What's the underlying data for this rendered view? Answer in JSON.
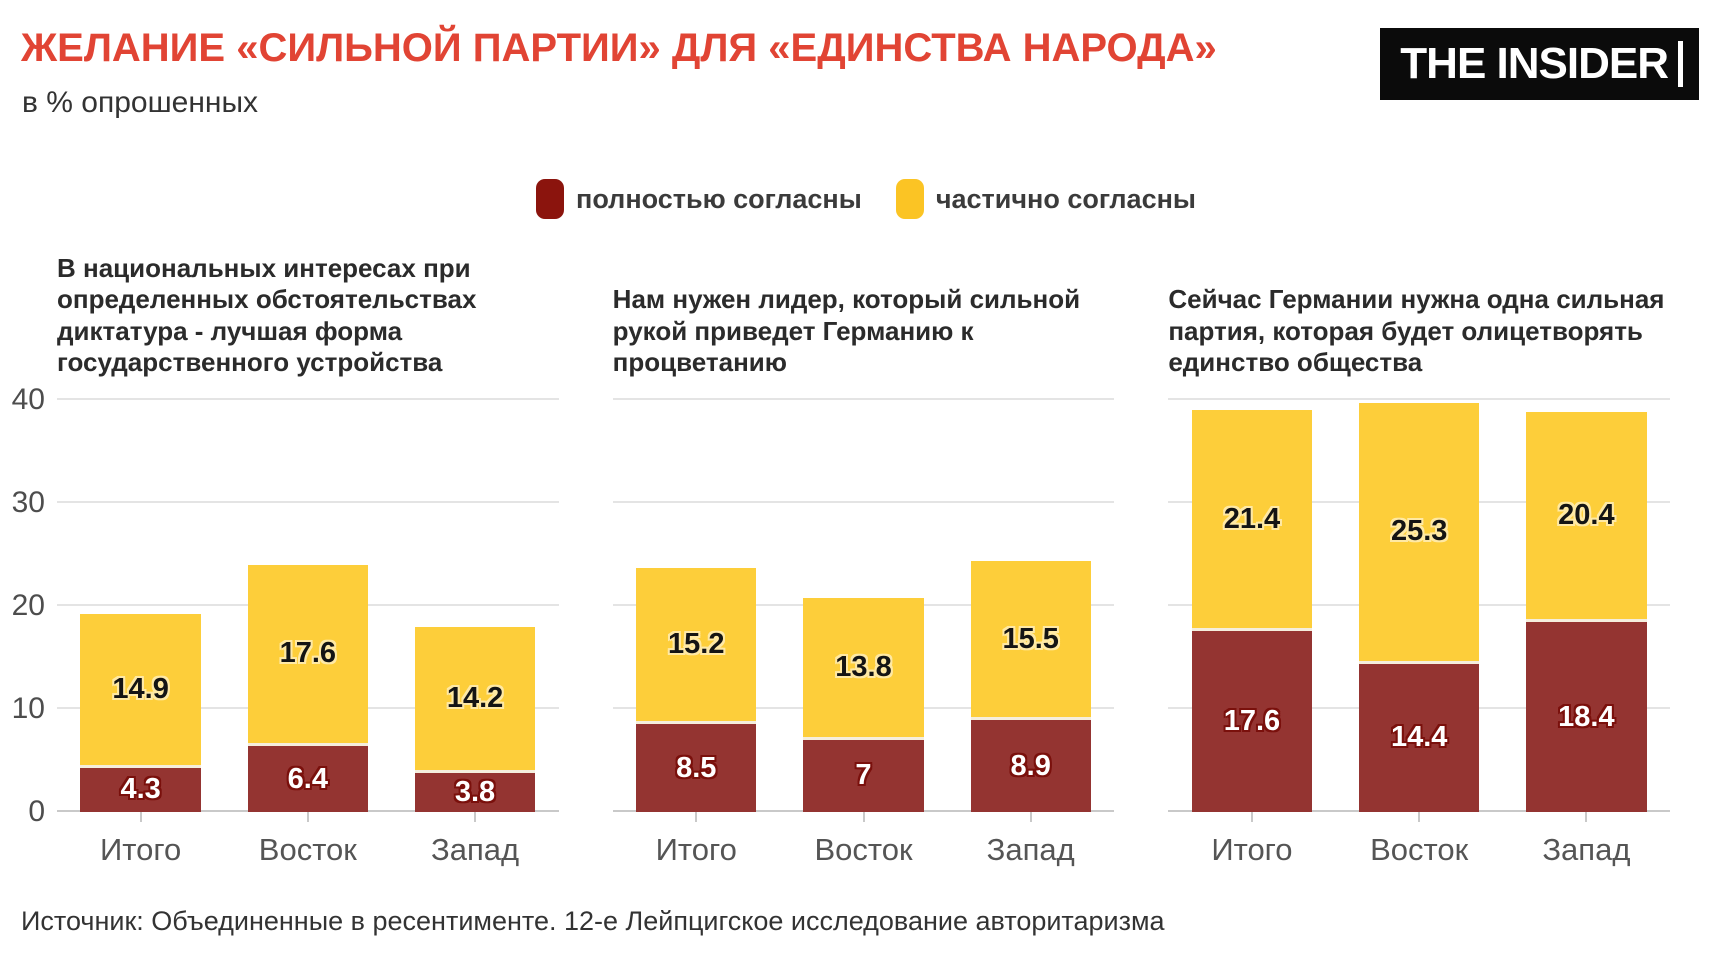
{
  "header": {
    "title": "ЖЕЛАНИЕ «СИЛЬНОЙ ПАРТИИ» ДЛЯ «ЕДИНСТВА НАРОДА»",
    "subtitle": "в % опрошенных",
    "logo_text": "THE INSIDER"
  },
  "legend": [
    {
      "label": "полностью согласны",
      "color": "#8b140d"
    },
    {
      "label": "частично согласны",
      "color": "#fbc424"
    }
  ],
  "colors": {
    "title_accent": "#e14434",
    "bar_full": "#943431",
    "bar_partial": "#fdce3a",
    "separator": "#f5eedd",
    "gridline": "#e4e4e4",
    "axis_text": "#4d4d4d"
  },
  "chart_data": [
    {
      "type": "bar",
      "stacked": true,
      "title": "В национальных интересах при определенных обстоятельствах диктатура - лучшая форма государственного устройства",
      "categories": [
        "Итого",
        "Восток",
        "Запад"
      ],
      "series": [
        {
          "name": "полностью согласны",
          "values": [
            4.3,
            6.4,
            3.8
          ]
        },
        {
          "name": "частично согласны",
          "values": [
            14.9,
            17.6,
            14.2
          ]
        }
      ],
      "ylim": [
        0,
        40
      ],
      "yticks": [
        0,
        10,
        20,
        30,
        40
      ],
      "show_y_labels": true,
      "grid": true,
      "legend_position": "top-center"
    },
    {
      "type": "bar",
      "stacked": true,
      "title": "Нам нужен лидер, который сильной рукой приведет Германию к процветанию",
      "categories": [
        "Итого",
        "Восток",
        "Запад"
      ],
      "series": [
        {
          "name": "полностью согласны",
          "values": [
            8.5,
            7,
            8.9
          ]
        },
        {
          "name": "частично согласны",
          "values": [
            15.2,
            13.8,
            15.5
          ]
        }
      ],
      "ylim": [
        0,
        40
      ],
      "yticks": [
        0,
        10,
        20,
        30,
        40
      ],
      "show_y_labels": false,
      "grid": true,
      "legend_position": "top-center"
    },
    {
      "type": "bar",
      "stacked": true,
      "title": "Сейчас Германии нужна одна сильная партия, которая будет олицетворять единство общества",
      "categories": [
        "Итого",
        "Восток",
        "Запад"
      ],
      "series": [
        {
          "name": "полностью согласны",
          "values": [
            17.6,
            14.4,
            18.4
          ]
        },
        {
          "name": "частично согласны",
          "values": [
            21.4,
            25.3,
            20.4
          ]
        }
      ],
      "ylim": [
        0,
        40
      ],
      "yticks": [
        0,
        10,
        20,
        30,
        40
      ],
      "show_y_labels": false,
      "grid": true,
      "legend_position": "top-center"
    }
  ],
  "source": "Источник: Объединенные в ресентименте. 12-е Лейпцигское исследование авторитаризма"
}
